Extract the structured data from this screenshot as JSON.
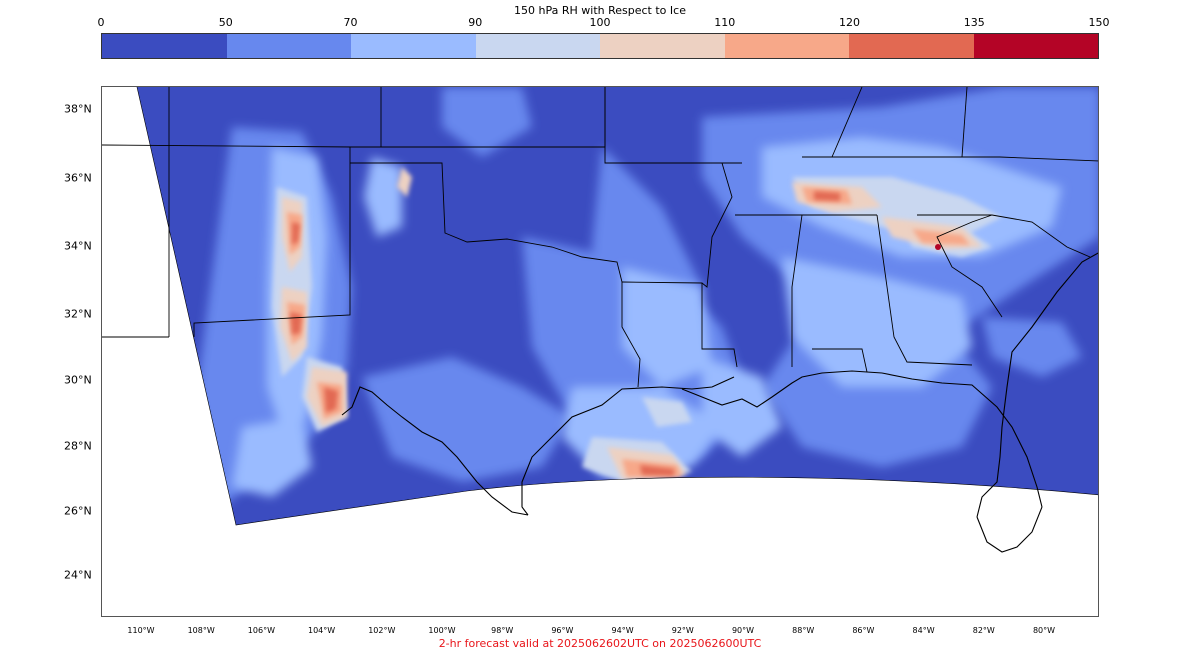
{
  "colorbar": {
    "title": "150 hPa RH with Respect to Ice",
    "ticks": [
      "0",
      "50",
      "70",
      "90",
      "100",
      "110",
      "120",
      "135",
      "150"
    ],
    "colors": [
      "#3b4cc0",
      "#6788ee",
      "#9abbff",
      "#c9d7f0",
      "#edd1c2",
      "#f7a889",
      "#e26952",
      "#b40426"
    ]
  },
  "map": {
    "lat_labels": [
      "38°N",
      "36°N",
      "34°N",
      "32°N",
      "30°N",
      "28°N",
      "26°N",
      "24°N"
    ],
    "lon_labels": [
      "110°W",
      "108°W",
      "106°W",
      "104°W",
      "102°W",
      "100°W",
      "98°W",
      "96°W",
      "94°W",
      "92°W",
      "90°W",
      "88°W",
      "86°W",
      "84°W",
      "82°W",
      "80°W"
    ]
  },
  "caption": "2-hr forecast valid at 2025062602UTC on 2025062600UTC"
}
